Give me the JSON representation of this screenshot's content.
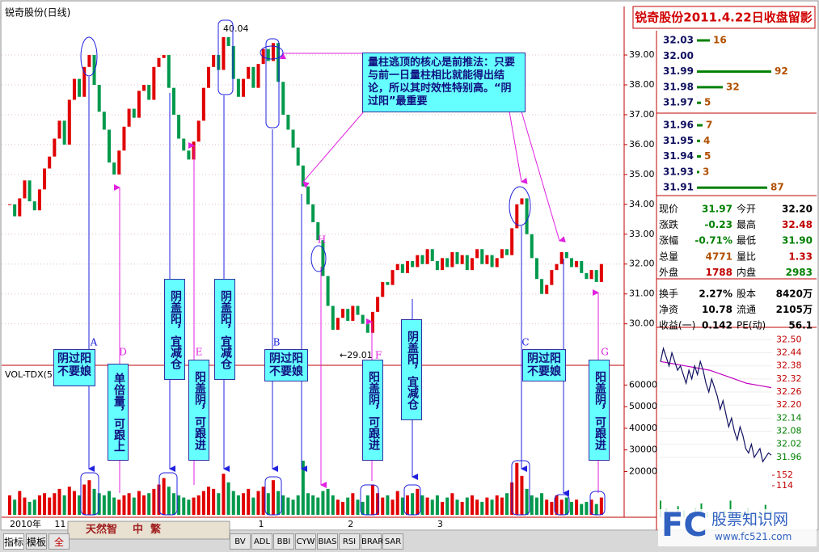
{
  "header": {
    "title": "锐奇股份(日线)"
  },
  "chart_data": [
    {
      "type": "candlestick",
      "title": "锐奇股份(日线)",
      "categories": [
        "2010年",
        null,
        null,
        null,
        null,
        null,
        null,
        null,
        null,
        "11",
        null,
        null,
        null,
        null,
        null,
        null,
        null,
        null,
        null,
        null,
        null,
        null,
        null,
        null,
        null,
        null,
        null,
        null,
        null,
        null,
        null,
        null,
        null,
        null,
        null,
        null,
        null,
        null,
        null,
        null,
        null,
        null,
        null,
        null,
        null,
        null,
        null,
        null,
        null,
        null,
        "1",
        null,
        null,
        null,
        null,
        null,
        null,
        null,
        null,
        null,
        null,
        null,
        null,
        null,
        null,
        null,
        null,
        null,
        "2",
        null,
        null,
        null,
        null,
        null,
        null,
        null,
        null,
        null,
        null,
        null,
        null,
        null,
        null,
        null,
        null,
        null,
        "3",
        null,
        null,
        null,
        null,
        null,
        null,
        null,
        null,
        null,
        null,
        null,
        null,
        null,
        null,
        null,
        null,
        null,
        null,
        null,
        null,
        null,
        null,
        null,
        null,
        null,
        null,
        null,
        null,
        null,
        null,
        null,
        null,
        null
      ],
      "close": [
        34.0,
        33.6,
        34.2,
        34.8,
        34.1,
        33.8,
        34.5,
        35.2,
        35.6,
        36.2,
        36.8,
        36.0,
        37.5,
        38.2,
        37.6,
        38.6,
        39.0,
        38.0,
        37.1,
        36.5,
        35.4,
        35.0,
        35.8,
        36.6,
        37.2,
        36.9,
        37.8,
        38.0,
        37.5,
        38.6,
        38.9,
        39.0,
        37.9,
        37.0,
        36.2,
        35.8,
        35.5,
        36.1,
        36.8,
        37.9,
        38.6,
        39.0,
        38.5,
        39.6,
        39.3,
        38.2,
        37.6,
        38.2,
        38.6,
        37.9,
        38.7,
        39.2,
        38.8,
        39.4,
        38.1,
        37.0,
        36.5,
        35.9,
        35.3,
        34.6,
        34.0,
        33.4,
        32.8,
        31.6,
        30.6,
        29.8,
        30.2,
        30.5,
        30.1,
        30.6,
        30.3,
        30.0,
        29.7,
        30.4,
        30.9,
        31.4,
        31.3,
        31.8,
        32.0,
        31.7,
        32.1,
        31.9,
        32.3,
        32.0,
        32.5,
        32.1,
        31.8,
        32.2,
        31.9,
        32.4,
        32.0,
        32.3,
        31.8,
        32.2,
        32.5,
        32.0,
        32.3,
        31.9,
        32.2,
        32.5,
        32.3,
        33.2,
        34.0,
        34.2,
        33.0,
        32.2,
        31.5,
        31.0,
        31.3,
        31.8,
        32.0,
        32.4,
        32.2,
        31.9,
        32.1,
        31.7,
        31.5,
        31.8,
        31.4,
        32.0
      ],
      "up_color": "#e00000",
      "down_color": "#00994c",
      "ylim": [
        28.8,
        40.3
      ],
      "yticks": [
        {
          "value": 30,
          "label": "30.00"
        },
        {
          "value": 31,
          "label": "31.00"
        },
        {
          "value": 32,
          "label": "32.00"
        },
        {
          "value": 33,
          "label": "33.00"
        },
        {
          "value": 34,
          "label": "34.00"
        },
        {
          "value": 35,
          "label": "35.00"
        },
        {
          "value": 36,
          "label": "36.00"
        },
        {
          "value": 37,
          "label": "37.00"
        },
        {
          "value": 38,
          "label": "38.00"
        },
        {
          "value": 39,
          "label": "39.00"
        }
      ],
      "annotations": {
        "high": "40.04",
        "low": "←29.01"
      }
    },
    {
      "type": "bar",
      "title": "VOL-TDX(5",
      "values": [
        9000,
        7000,
        11000,
        8000,
        6000,
        7000,
        9000,
        10000,
        8000,
        10000,
        12000,
        9000,
        13000,
        11000,
        9000,
        14000,
        16000,
        12000,
        10000,
        9000,
        11000,
        8000,
        7000,
        9000,
        10000,
        8000,
        11000,
        9000,
        10000,
        12000,
        14000,
        17000,
        13000,
        10000,
        9000,
        8000,
        7000,
        8000,
        9000,
        11000,
        13000,
        12000,
        10000,
        19000,
        15000,
        11000,
        9000,
        10000,
        12000,
        8000,
        11000,
        13000,
        10000,
        16000,
        11000,
        9000,
        8000,
        7000,
        9000,
        25000,
        10000,
        9000,
        8000,
        11000,
        12000,
        9000,
        7000,
        6000,
        8000,
        10000,
        7000,
        6000,
        9000,
        14000,
        10000,
        8000,
        9000,
        7000,
        11000,
        8000,
        9000,
        10000,
        12000,
        9000,
        8000,
        7000,
        9000,
        6000,
        8000,
        10000,
        7000,
        6000,
        8000,
        9000,
        7000,
        6000,
        8000,
        7000,
        9000,
        8000,
        10000,
        15000,
        24000,
        18000,
        12000,
        9000,
        8000,
        10000,
        7000,
        6000,
        9000,
        7000,
        8000,
        6000,
        7000,
        5000,
        6000,
        7000,
        5000,
        8000
      ],
      "ylim": [
        0,
        68000
      ],
      "yticks": [
        20000,
        30000,
        40000,
        50000,
        60000
      ]
    },
    {
      "type": "line",
      "values": [
        32.4,
        32.46,
        32.42,
        32.38,
        32.44,
        32.4,
        32.36,
        32.38,
        32.34,
        32.3,
        32.36,
        32.32,
        32.38,
        32.34,
        32.4,
        32.36,
        32.3,
        32.26,
        32.32,
        32.28,
        32.24,
        32.18,
        32.22,
        32.16,
        32.1,
        32.14,
        32.08,
        32.04,
        32.1,
        32.06,
        32.0,
        31.98,
        32.02,
        31.96,
        31.98,
        32.0,
        31.94,
        31.96,
        31.98,
        31.97
      ],
      "average": [
        32.4,
        32.39,
        32.38,
        32.37,
        32.36,
        32.34,
        32.32,
        32.3,
        32.29,
        32.28
      ],
      "color": "#101060",
      "average_color": "#c000c0",
      "ylim": [
        31.9,
        32.52
      ],
      "yticks": [
        {
          "value": 32.5,
          "label": "32.50"
        },
        {
          "value": 32.44,
          "label": "32.44"
        },
        {
          "value": 32.38,
          "label": "32.38"
        },
        {
          "value": 32.32,
          "label": "32.32"
        },
        {
          "value": 32.26,
          "label": "32.26"
        },
        {
          "value": 32.2,
          "label": "32.20"
        },
        {
          "value": 32.14,
          "label": "32.14"
        },
        {
          "value": 32.08,
          "label": "32.08"
        },
        {
          "value": 32.02,
          "label": "32.02"
        },
        {
          "value": 31.96,
          "label": "31.96"
        }
      ]
    },
    {
      "type": "bar",
      "values": [
        60,
        30,
        20,
        40,
        25,
        15,
        30,
        50,
        20,
        15,
        10,
        25,
        60,
        20,
        15,
        30,
        10,
        20,
        45,
        25
      ],
      "color": "#009933",
      "ylim": [
        0,
        190
      ],
      "yticks": [
        114,
        152
      ]
    }
  ],
  "notes": {
    "letters": [
      "A",
      "D",
      "E",
      "B",
      "H",
      "F",
      "C",
      "G"
    ],
    "callout": "量柱逃顶的核心是前推法：只要与前一日量柱相比就能得出结论，所以其时效性特别高。“阴过阳”最重要",
    "boxes": [
      "阴过阳不要娘",
      "单倍量，可跟上",
      "阴盖阳，宜减仓",
      "阳盖阴，可跟进",
      "阴盖阳，宜减仓",
      "阴过阳不要娘",
      "阳盖阴，可跟进",
      "阴盖阳，宜减仓",
      "阴过阳不要娘",
      "阳盖阴，可跟进"
    ]
  },
  "quote_panel": {
    "title": "锐奇股份2011.4.22日收盘留影",
    "asks": [
      {
        "price": "32.03",
        "volume": 16
      },
      {
        "price": "32.00",
        "volume": null
      },
      {
        "price": "31.99",
        "volume": 92
      },
      {
        "price": "31.98",
        "volume": 32
      },
      {
        "price": "31.97",
        "volume": 5
      }
    ],
    "bids": [
      {
        "price": "31.96",
        "volume": 7
      },
      {
        "price": "31.95",
        "volume": 4
      },
      {
        "price": "31.94",
        "volume": 5
      },
      {
        "price": "31.93",
        "volume": 3
      },
      {
        "price": "31.91",
        "volume": 87
      }
    ],
    "rows": [
      [
        "现价",
        "31.97",
        "今开",
        "32.20"
      ],
      [
        "涨跌",
        "-0.23",
        "最高",
        "32.48"
      ],
      [
        "涨幅",
        "-0.71%",
        "最低",
        "31.90"
      ],
      [
        "总量",
        "4771",
        "量比",
        "1.33"
      ],
      [
        "外盘",
        "1788",
        "内盘",
        "2983"
      ],
      [
        "换手",
        "2.27%",
        "股本",
        "8420万"
      ],
      [
        "净资",
        "10.78",
        "流通",
        "2105万"
      ],
      [
        "收益(一)",
        "0.142",
        "PE(动)",
        "56.1"
      ]
    ]
  },
  "toolbar": {
    "left": [
      "指标",
      "模板",
      "全"
    ],
    "tools": [
      "天然智",
      "中",
      "繁"
    ],
    "tabs": [
      "BV",
      "ADL",
      "BBI",
      "CYW",
      "BIAS",
      "RSI",
      "BRAR",
      "SAR"
    ]
  },
  "watermark": {
    "logo": "FC",
    "name": "股票知识网",
    "url": "www.fc521.com"
  }
}
